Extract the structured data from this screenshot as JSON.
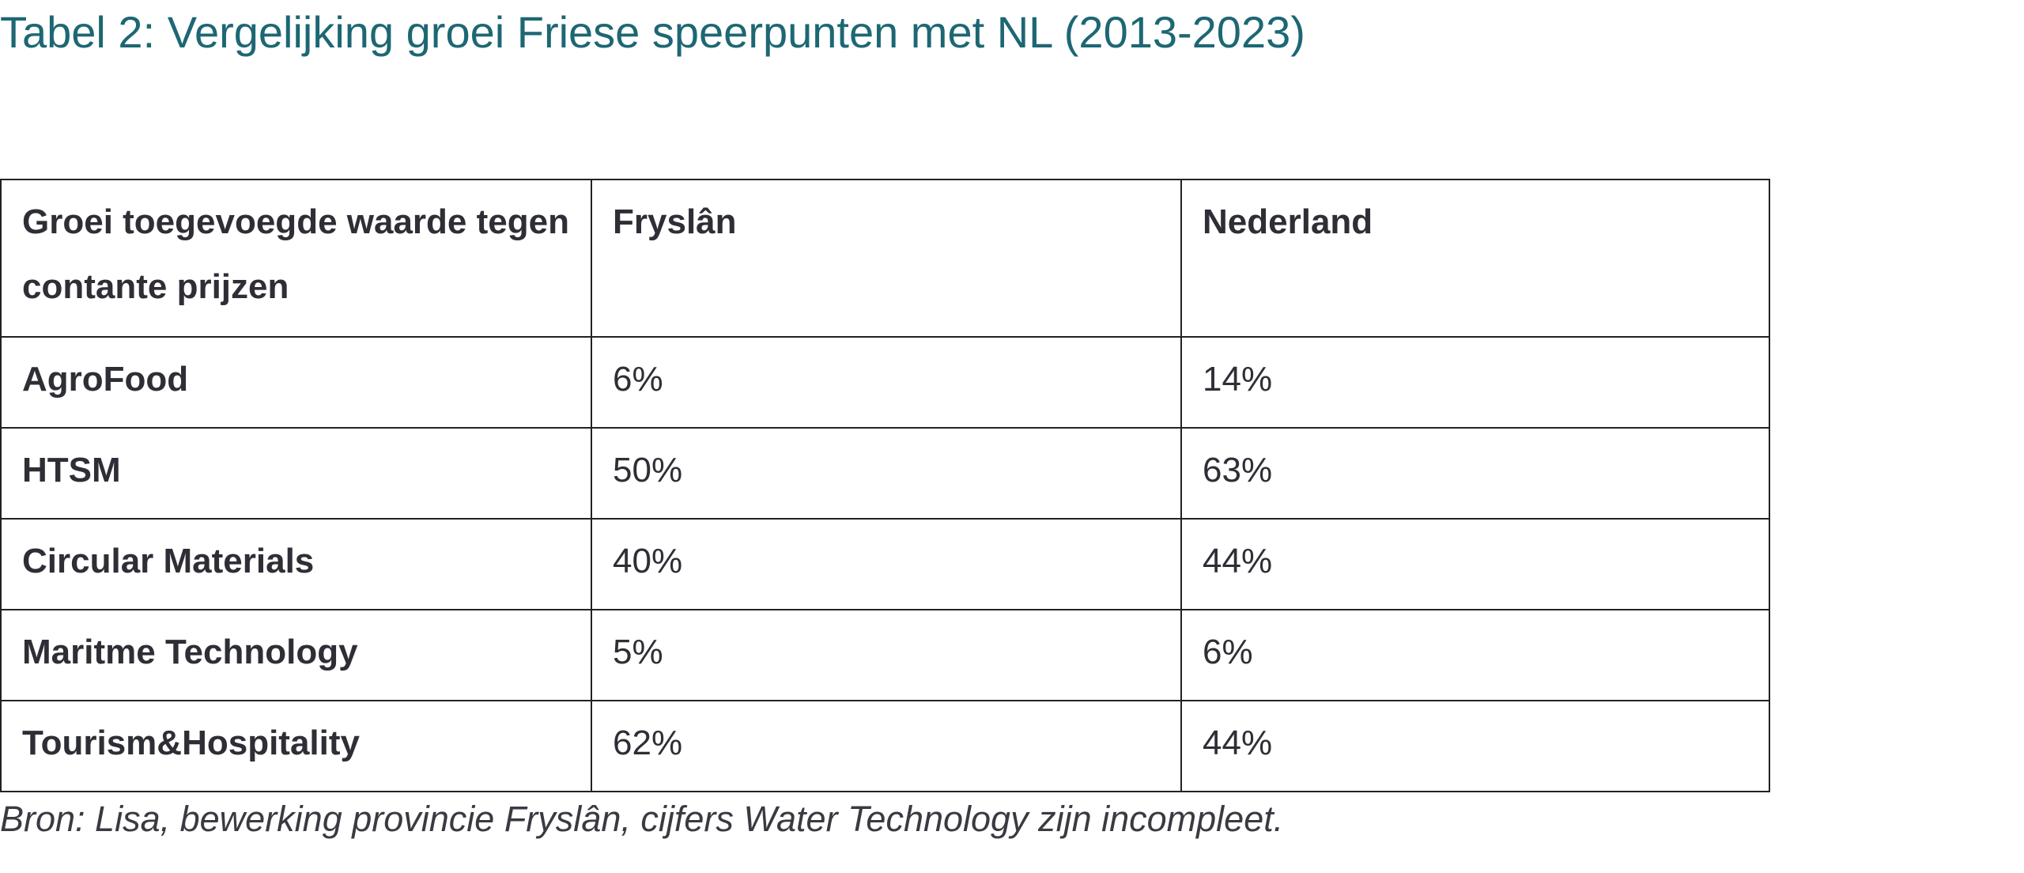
{
  "title": "Tabel 2: Vergelijking groei Friese speerpunten met NL (2013-2023)",
  "table": {
    "headers": [
      "Groei toegevoegde waarde tegen contante prijzen",
      "Fryslân",
      "Nederland"
    ],
    "rows": [
      {
        "label": "AgroFood",
        "fryslan": "6%",
        "nederland": "14%"
      },
      {
        "label": "HTSM",
        "fryslan": "50%",
        "nederland": "63%"
      },
      {
        "label": "Circular Materials",
        "fryslan": "40%",
        "nederland": "44%"
      },
      {
        "label": "Maritme Technology",
        "fryslan": "5%",
        "nederland": "6%"
      },
      {
        "label": "Tourism&Hospitality",
        "fryslan": "62%",
        "nederland": "44%"
      }
    ]
  },
  "source": "Bron: Lisa, bewerking provincie Fryslân, cijfers Water Technology zijn incompleet.",
  "colors": {
    "title": "#1d6774",
    "text": "#2e2e36",
    "border": "#222222"
  }
}
